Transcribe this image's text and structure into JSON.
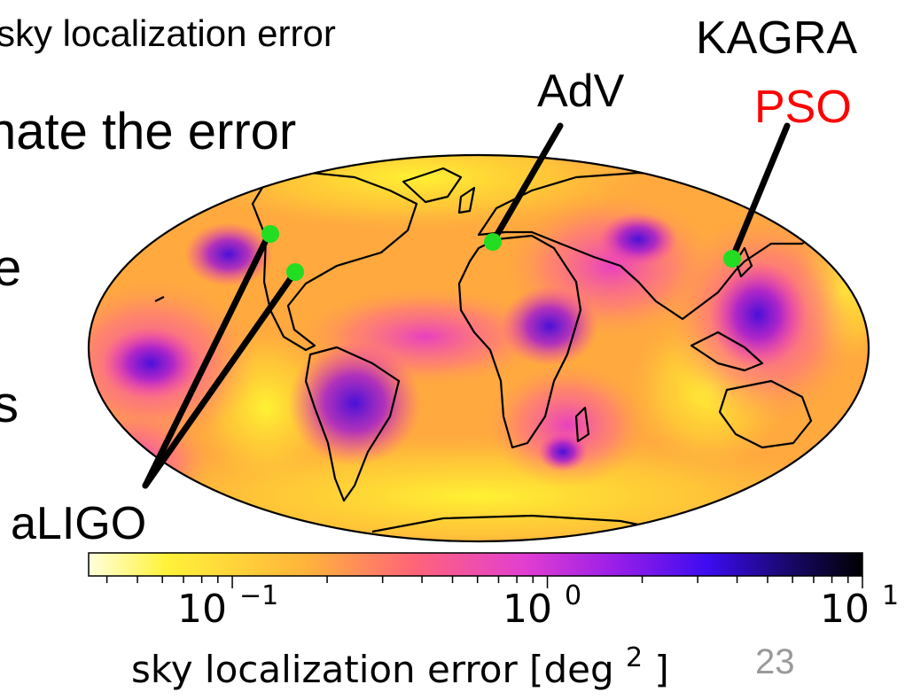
{
  "slide": {
    "header_line": "sky localization error",
    "subheading": "nate the error",
    "bullet_fragment_1": "e",
    "bullet_fragment_2": "s",
    "page_number": "23"
  },
  "detectors": {
    "kagra_label": "KAGRA",
    "pso_label": "PSO",
    "adv_label": "AdV",
    "aligo_label": "aLIGO",
    "site_marker_color": "#22dd22",
    "pso_color": "#ff0000"
  },
  "colorbar": {
    "title": "sky localization error [deg",
    "title_superscript": "2",
    "title_close": "]",
    "tick_labels": [
      {
        "base": "10",
        "exp": "−1"
      },
      {
        "base": "10",
        "exp": "0"
      },
      {
        "base": "10",
        "exp": "1"
      }
    ],
    "colormap": "plasma_r",
    "scale": "log",
    "range": [
      0.035,
      10
    ]
  }
}
